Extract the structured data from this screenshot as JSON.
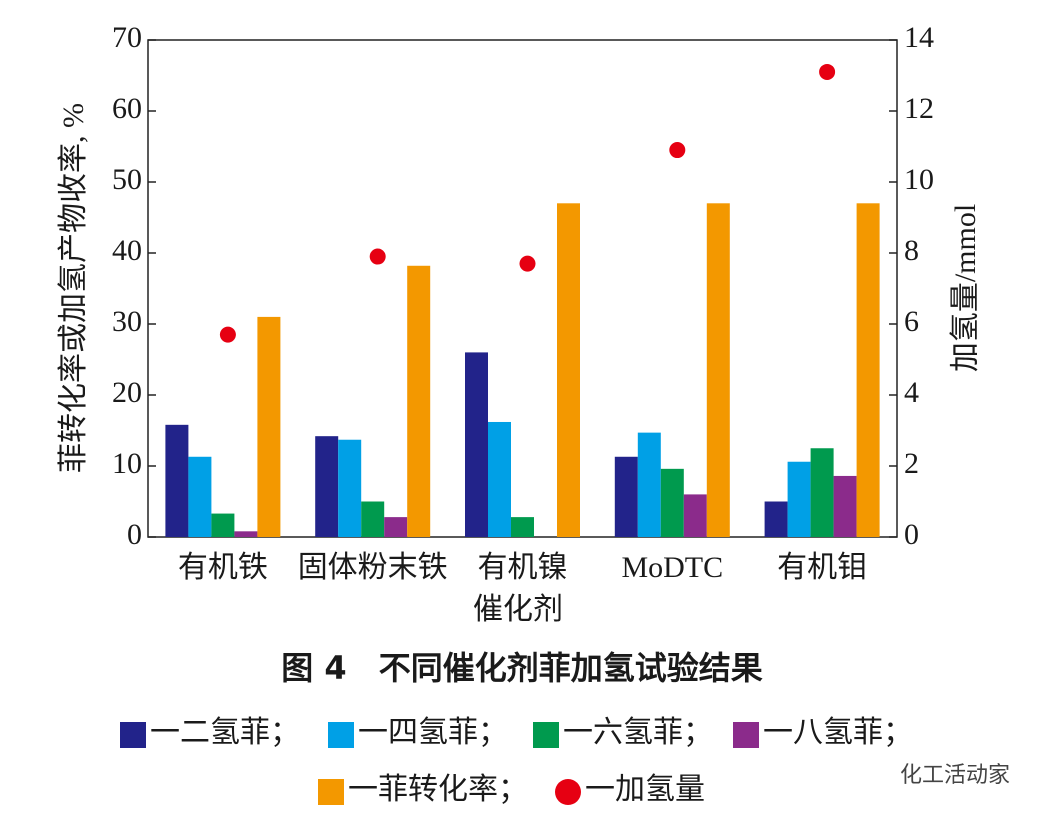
{
  "chart_data": {
    "type": "bar",
    "title": "图 4　不同催化剂菲加氢试验结果",
    "x_label": "催化剂",
    "y_label": "菲转化率或加氢产物收率, %",
    "y2_label": "加氢量/mmol",
    "categories": [
      "有机铁",
      "固体粉末铁",
      "有机镍",
      "MoDTC",
      "有机钼"
    ],
    "ylim": [
      0,
      70
    ],
    "yticks": [
      0,
      10,
      20,
      30,
      40,
      50,
      60,
      70
    ],
    "y2lim": [
      0,
      14
    ],
    "y2ticks": [
      0,
      2,
      4,
      6,
      8,
      10,
      12,
      14
    ],
    "series": [
      {
        "name": "一二氢菲；",
        "color": "#22238a",
        "values": [
          15.8,
          14.2,
          26,
          11.3,
          5
        ]
      },
      {
        "name": "一四氢菲；",
        "color": "#00a0e6",
        "values": [
          11.3,
          13.7,
          16.2,
          14.7,
          10.6
        ]
      },
      {
        "name": "一六氢菲；",
        "color": "#009a4e",
        "values": [
          3.3,
          5,
          2.8,
          9.6,
          12.5
        ]
      },
      {
        "name": "一八氢菲；",
        "color": "#8b2b8b",
        "values": [
          0.8,
          2.8,
          null,
          6,
          8.6
        ]
      },
      {
        "name": "一菲转化率；",
        "color": "#f39800",
        "values": [
          31,
          38.2,
          47,
          47,
          47
        ]
      },
      {
        "name": "一加氢量",
        "color": "#e60012",
        "type": "scatter",
        "axis": "y2",
        "values": [
          5.7,
          7.9,
          7.7,
          10.9,
          13.1
        ]
      }
    ],
    "watermark": "化工活动家"
  }
}
